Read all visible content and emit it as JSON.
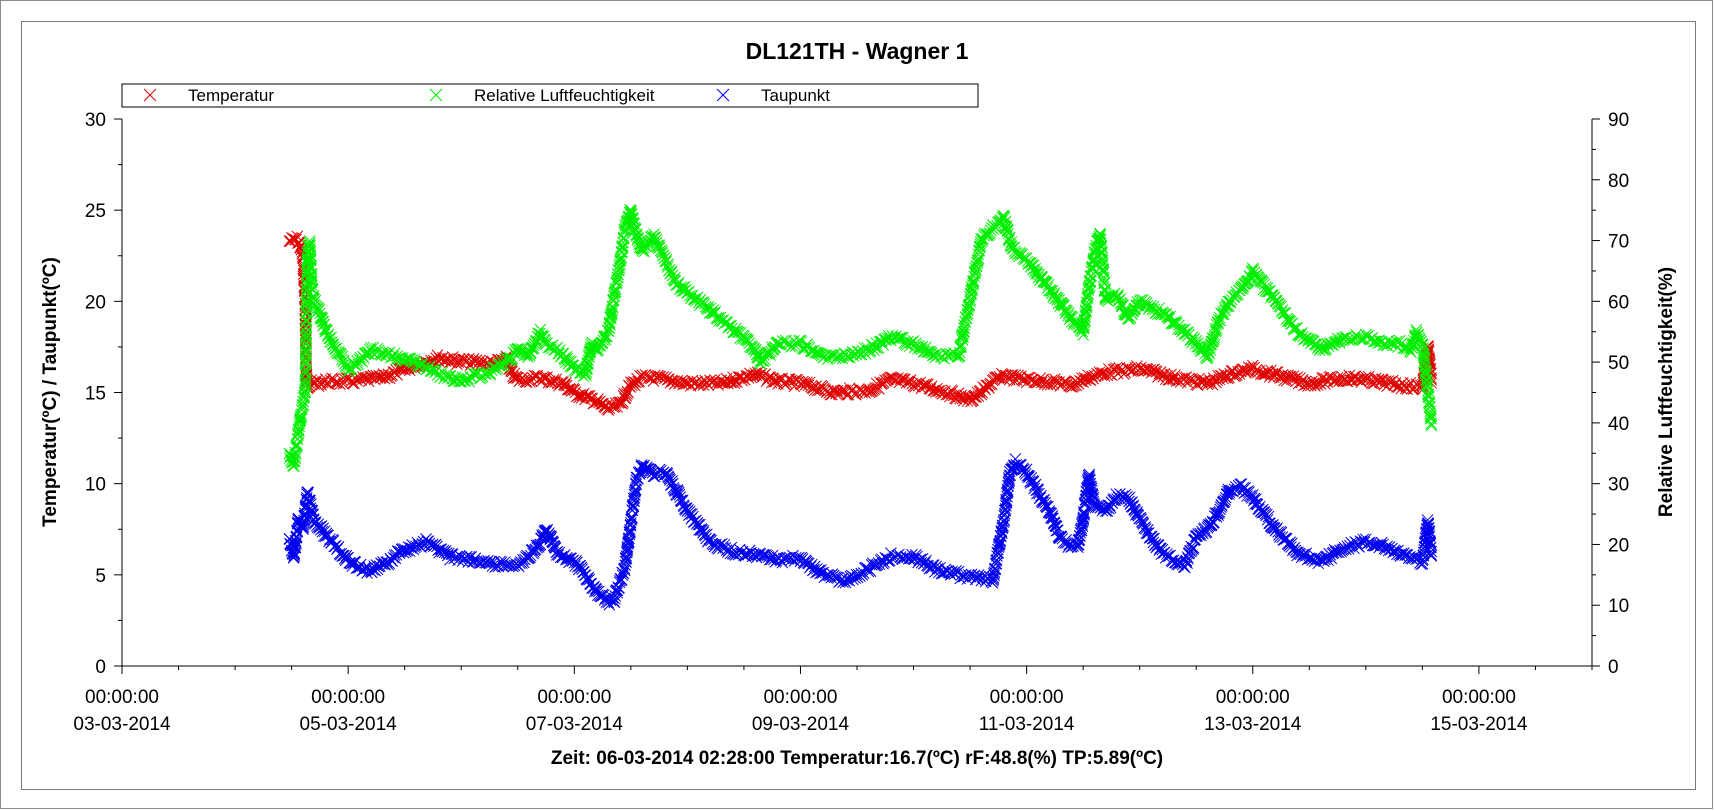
{
  "chart_data": {
    "type": "scatter",
    "title": "DL121TH - Wagner 1",
    "ylabel_left": "Temperatur(ºC) / Taupunkt(ºC)",
    "ylabel_right": "Relative Luftfeuchtigkeit(%)",
    "ylim_left": [
      0,
      30
    ],
    "ylim_right": [
      0,
      90
    ],
    "yticks_left": [
      "0",
      "5",
      "10",
      "15",
      "20",
      "25",
      "30"
    ],
    "yticks_right": [
      "0",
      "10",
      "20",
      "30",
      "40",
      "50",
      "60",
      "70",
      "80",
      "90"
    ],
    "x_unit": "days since 03-03-2014 00:00:00",
    "xlim": [
      0,
      13
    ],
    "xticks": [
      {
        "x": 0,
        "time": "00:00:00",
        "date": "03-03-2014"
      },
      {
        "x": 2,
        "time": "00:00:00",
        "date": "05-03-2014"
      },
      {
        "x": 4,
        "time": "00:00:00",
        "date": "07-03-2014"
      },
      {
        "x": 6,
        "time": "00:00:00",
        "date": "09-03-2014"
      },
      {
        "x": 8,
        "time": "00:00:00",
        "date": "11-03-2014"
      },
      {
        "x": 10,
        "time": "00:00:00",
        "date": "13-03-2014"
      },
      {
        "x": 12,
        "time": "00:00:00",
        "date": "15-03-2014"
      }
    ],
    "marker": "x",
    "legend_position": "top-left",
    "grid": false,
    "status_line": "Zeit: 06-03-2014 02:28:00 Temperatur:16.7(ºC) rF:48.8(%) TP:5.89(ºC)",
    "series": [
      {
        "name": "Temperatur",
        "color": "#e00000",
        "axis": "left",
        "x": [
          1.48,
          1.55,
          1.58,
          1.6,
          1.62,
          1.63,
          1.64,
          1.66,
          1.7,
          1.8,
          2.0,
          2.3,
          2.6,
          2.8,
          3.0,
          3.3,
          3.4,
          3.45,
          3.5,
          3.7,
          3.9,
          4.0,
          4.2,
          4.3,
          4.4,
          4.5,
          4.6,
          4.7,
          4.8,
          5.0,
          5.3,
          5.6,
          5.8,
          6.0,
          6.3,
          6.6,
          6.8,
          7.0,
          7.3,
          7.5,
          7.6,
          7.7,
          7.8,
          8.0,
          8.2,
          8.4,
          8.5,
          8.7,
          8.9,
          9.0,
          9.3,
          9.6,
          9.8,
          10.0,
          10.3,
          10.5,
          10.8,
          11.0,
          11.3,
          11.5,
          11.55,
          11.58
        ],
        "y": [
          23.3,
          23.4,
          23.0,
          22.5,
          20.0,
          16.0,
          15.3,
          15.5,
          15.5,
          15.6,
          15.6,
          15.8,
          16.5,
          16.9,
          16.7,
          16.6,
          16.8,
          16.0,
          15.7,
          15.8,
          15.5,
          15.0,
          14.5,
          14.1,
          14.3,
          15.4,
          15.8,
          15.8,
          15.7,
          15.5,
          15.5,
          16.0,
          15.6,
          15.5,
          15.0,
          15.1,
          15.7,
          15.5,
          15.0,
          14.6,
          15.0,
          15.6,
          15.9,
          15.7,
          15.6,
          15.4,
          15.7,
          16.1,
          16.2,
          16.3,
          15.8,
          15.5,
          16.0,
          16.3,
          15.8,
          15.5,
          15.8,
          15.7,
          15.4,
          15.3,
          17.5,
          15.6
        ]
      },
      {
        "name": "Relative Luftfeuchtigkeit",
        "color": "#00ee00",
        "axis": "right",
        "x": [
          1.48,
          1.52,
          1.58,
          1.62,
          1.64,
          1.66,
          1.68,
          1.7,
          1.75,
          1.8,
          1.9,
          2.0,
          2.1,
          2.2,
          2.4,
          2.6,
          2.8,
          3.0,
          3.2,
          3.4,
          3.5,
          3.6,
          3.7,
          3.75,
          3.85,
          4.0,
          4.1,
          4.15,
          4.2,
          4.3,
          4.4,
          4.45,
          4.5,
          4.55,
          4.6,
          4.7,
          4.8,
          4.9,
          5.1,
          5.3,
          5.5,
          5.6,
          5.65,
          5.8,
          6.0,
          6.2,
          6.4,
          6.6,
          6.8,
          7.0,
          7.2,
          7.4,
          7.6,
          7.8,
          7.85,
          7.9,
          8.0,
          8.2,
          8.4,
          8.5,
          8.55,
          8.6,
          8.65,
          8.7,
          8.8,
          8.9,
          9.0,
          9.2,
          9.4,
          9.5,
          9.6,
          9.7,
          9.8,
          9.9,
          10.0,
          10.2,
          10.4,
          10.6,
          10.8,
          11.0,
          11.2,
          11.3,
          11.4,
          11.45,
          11.5,
          11.55,
          11.58
        ],
        "y": [
          35,
          33,
          41,
          45,
          68,
          70,
          62,
          60,
          58,
          55,
          52,
          49,
          50,
          52,
          51,
          50,
          48,
          47,
          48,
          50,
          52,
          51,
          55,
          53,
          52,
          49,
          48,
          53,
          52,
          55,
          66,
          72,
          75,
          71,
          68,
          71,
          67,
          63,
          60,
          57,
          54,
          52,
          50,
          53,
          53,
          51,
          51,
          52,
          54,
          53,
          51,
          51,
          70,
          74,
          70,
          68,
          67,
          62,
          57,
          55,
          62,
          68,
          71,
          60,
          61,
          57,
          60,
          58,
          55,
          53,
          51,
          57,
          60,
          62,
          65,
          60,
          55,
          52,
          54,
          54,
          53,
          53,
          52,
          55,
          53,
          45,
          40
        ]
      },
      {
        "name": "Taupunkt",
        "color": "#0000ee",
        "axis": "left",
        "x": [
          1.48,
          1.52,
          1.56,
          1.6,
          1.64,
          1.66,
          1.7,
          1.8,
          1.9,
          2.0,
          2.1,
          2.2,
          2.3,
          2.5,
          2.7,
          2.9,
          3.1,
          3.3,
          3.5,
          3.6,
          3.7,
          3.75,
          3.85,
          4.0,
          4.1,
          4.2,
          4.3,
          4.35,
          4.4,
          4.45,
          4.5,
          4.55,
          4.6,
          4.7,
          4.8,
          5.0,
          5.2,
          5.4,
          5.6,
          5.8,
          6.0,
          6.2,
          6.4,
          6.6,
          6.8,
          7.0,
          7.2,
          7.4,
          7.6,
          7.7,
          7.8,
          7.85,
          7.9,
          8.0,
          8.2,
          8.3,
          8.4,
          8.45,
          8.5,
          8.55,
          8.6,
          8.7,
          8.8,
          8.9,
          9.0,
          9.2,
          9.4,
          9.5,
          9.6,
          9.7,
          9.8,
          9.9,
          10.0,
          10.2,
          10.4,
          10.6,
          10.8,
          11.0,
          11.2,
          11.4,
          11.5,
          11.55,
          11.58
        ],
        "y": [
          7.0,
          6.0,
          8.0,
          7.5,
          9.5,
          9.0,
          8.0,
          7.2,
          6.5,
          5.8,
          5.4,
          5.2,
          5.5,
          6.4,
          6.8,
          6.0,
          5.8,
          5.6,
          5.6,
          6.0,
          6.8,
          7.5,
          6.2,
          5.7,
          5.0,
          4.0,
          3.5,
          3.6,
          4.5,
          5.5,
          7.8,
          10.2,
          11.0,
          10.5,
          10.7,
          8.5,
          6.8,
          6.3,
          6.1,
          5.8,
          5.9,
          5.0,
          4.7,
          5.3,
          6.0,
          6.0,
          5.3,
          5.0,
          4.8,
          4.7,
          8.0,
          10.5,
          11.2,
          10.6,
          8.5,
          7.0,
          6.5,
          6.5,
          8.0,
          10.5,
          8.8,
          8.5,
          9.3,
          9.2,
          8.0,
          6.2,
          5.5,
          7.0,
          7.5,
          8.5,
          9.7,
          9.8,
          9.2,
          7.5,
          6.2,
          5.7,
          6.5,
          6.8,
          6.5,
          5.9,
          5.7,
          8.0,
          6.0
        ]
      }
    ]
  }
}
